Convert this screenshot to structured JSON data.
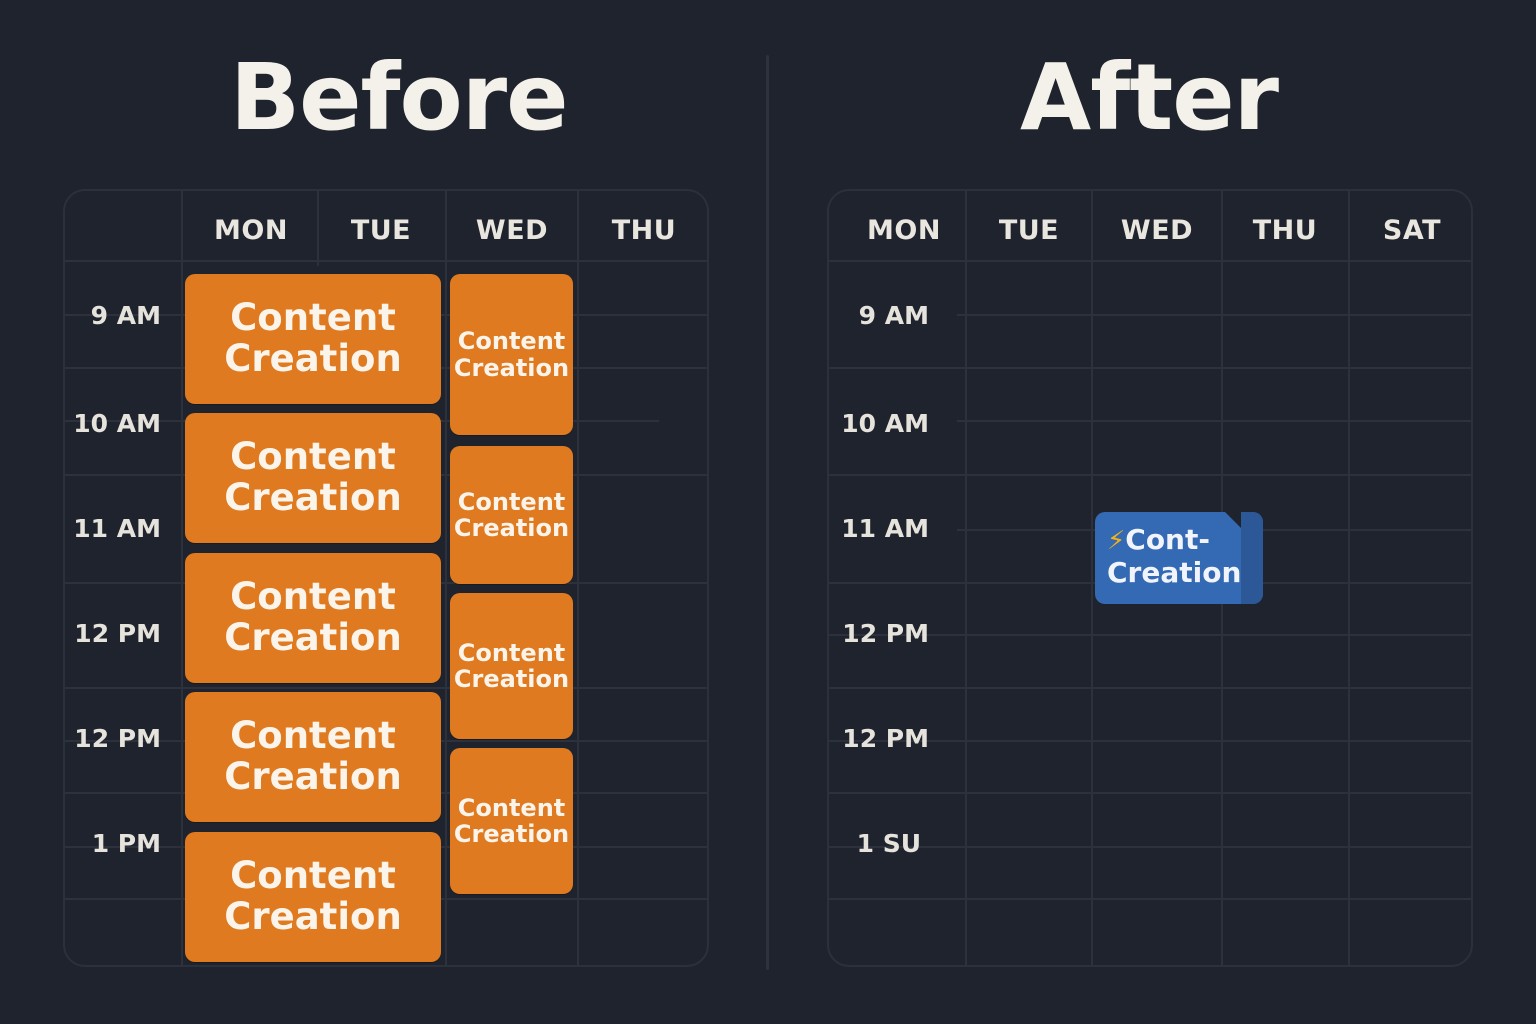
{
  "before": {
    "title": "Before",
    "days": [
      "MON",
      "TUE",
      "WED",
      "THU"
    ],
    "times": [
      "9 AM",
      "10 AM",
      "11 AM",
      "12 PM",
      "12 PM",
      "1 PM"
    ],
    "mon_tue_events": [
      "Content Creation",
      "Content Creation",
      "Content Creation",
      "Content Creation",
      "Content Creation"
    ],
    "wed_events": [
      "Content Creation",
      "Content Creation",
      "Content Creation",
      "Content Creation"
    ],
    "event_color": "#e07a20"
  },
  "after": {
    "title": "After",
    "days": [
      "MON",
      "TUE",
      "WED",
      "THU",
      "SAT"
    ],
    "times": [
      "9 AM",
      "10 AM",
      "11 AM",
      "12 PM",
      "12 PM",
      "1 SU"
    ],
    "event": {
      "icon": "lightning-icon",
      "line1": "Cont-",
      "line2": "Creation",
      "color": "#3469b4"
    }
  }
}
